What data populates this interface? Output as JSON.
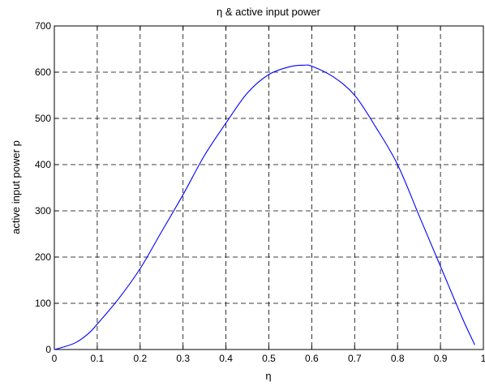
{
  "chart_data": {
    "type": "line",
    "title": "η & active input power",
    "xlabel": "η",
    "ylabel": "active input power p",
    "xlim": [
      0,
      1
    ],
    "ylim": [
      0,
      700
    ],
    "grid": true,
    "x_ticks": [
      "0",
      "0.1",
      "0.2",
      "0.3",
      "0.4",
      "0.5",
      "0.6",
      "0.7",
      "0.8",
      "0.9",
      "1"
    ],
    "y_ticks": [
      "0",
      "100",
      "200",
      "300",
      "400",
      "500",
      "600",
      "700"
    ],
    "series": [
      {
        "color": "#0000ff",
        "x": [
          0,
          0.02,
          0.05,
          0.08,
          0.1,
          0.15,
          0.2,
          0.25,
          0.3,
          0.35,
          0.4,
          0.45,
          0.5,
          0.55,
          0.58,
          0.6,
          0.65,
          0.7,
          0.75,
          0.8,
          0.85,
          0.9,
          0.95,
          0.98
        ],
        "y": [
          0,
          5,
          15,
          35,
          55,
          110,
          175,
          255,
          335,
          420,
          490,
          555,
          595,
          612,
          615,
          613,
          590,
          550,
          480,
          400,
          290,
          180,
          70,
          10
        ]
      }
    ]
  }
}
